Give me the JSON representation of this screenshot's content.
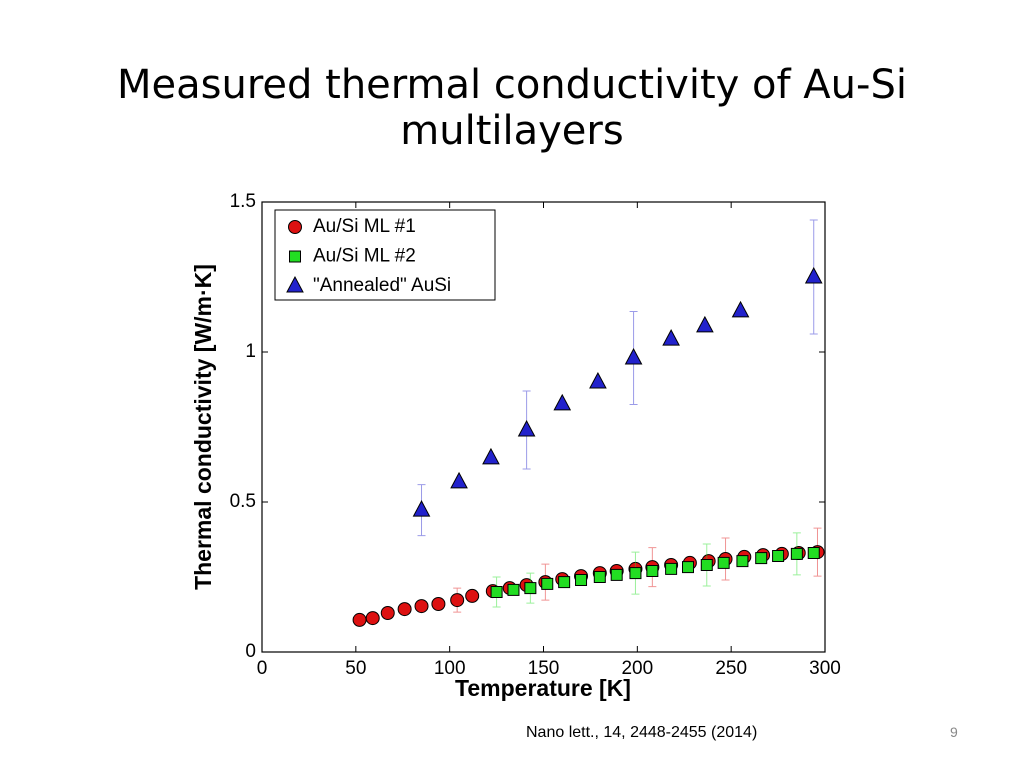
{
  "slide": {
    "title": "Measured thermal conductivity of Au-Si multilayers",
    "citation": "Nano lett., 14, 2448-2455 (2014)",
    "page_number": "9"
  },
  "chart_data": {
    "type": "scatter",
    "x_label": "Temperature [K]",
    "y_label": "Thermal conductivity [W/m·K]",
    "xlim": [
      0,
      300
    ],
    "xticks": [
      0,
      50,
      100,
      150,
      200,
      250,
      300
    ],
    "ylim": [
      0,
      1.5
    ],
    "yticks": [
      0,
      0.5,
      1,
      1.5
    ],
    "legend": "upper-left",
    "series": [
      {
        "name": "Au/Si ML #1",
        "color": "#dd1111",
        "marker": "circle",
        "x": [
          52,
          59,
          67,
          76,
          85,
          94,
          104,
          112,
          123,
          132,
          141,
          151,
          160,
          170,
          180,
          189,
          199,
          208,
          218,
          228,
          238,
          247,
          257,
          267,
          277,
          286,
          296
        ],
        "values": [
          0.107,
          0.113,
          0.13,
          0.143,
          0.153,
          0.16,
          0.173,
          0.187,
          0.203,
          0.213,
          0.223,
          0.233,
          0.243,
          0.253,
          0.263,
          0.27,
          0.277,
          0.283,
          0.29,
          0.297,
          0.303,
          0.31,
          0.317,
          0.323,
          0.327,
          0.33,
          0.333
        ],
        "errors": [
          0.015,
          null,
          null,
          null,
          null,
          null,
          0.04,
          null,
          null,
          null,
          null,
          0.06,
          null,
          null,
          null,
          null,
          null,
          0.065,
          null,
          null,
          null,
          0.07,
          null,
          null,
          null,
          null,
          0.08
        ]
      },
      {
        "name": "Au/Si ML #2",
        "color": "#22dd22",
        "marker": "square",
        "x": [
          125,
          134,
          143,
          152,
          161,
          170,
          180,
          189,
          199,
          208,
          218,
          227,
          237,
          246,
          256,
          266,
          275,
          285,
          294
        ],
        "values": [
          0.2,
          0.207,
          0.213,
          0.227,
          0.233,
          0.24,
          0.25,
          0.257,
          0.263,
          0.27,
          0.277,
          0.283,
          0.29,
          0.297,
          0.303,
          0.313,
          0.32,
          0.327,
          0.33
        ],
        "errors": [
          0.05,
          null,
          0.05,
          null,
          null,
          null,
          null,
          null,
          0.07,
          null,
          null,
          null,
          0.07,
          null,
          null,
          null,
          null,
          0.07,
          null
        ]
      },
      {
        "name": "\"Annealed\" AuSi",
        "color": "#2222cc",
        "marker": "triangle",
        "x": [
          85,
          105,
          122,
          141,
          160,
          179,
          198,
          218,
          236,
          255,
          294
        ],
        "values": [
          0.473,
          0.567,
          0.647,
          0.74,
          0.827,
          0.9,
          0.98,
          1.043,
          1.087,
          1.137,
          1.25
        ],
        "errors": [
          0.085,
          null,
          null,
          0.13,
          null,
          null,
          0.155,
          null,
          null,
          null,
          0.19
        ]
      }
    ]
  }
}
